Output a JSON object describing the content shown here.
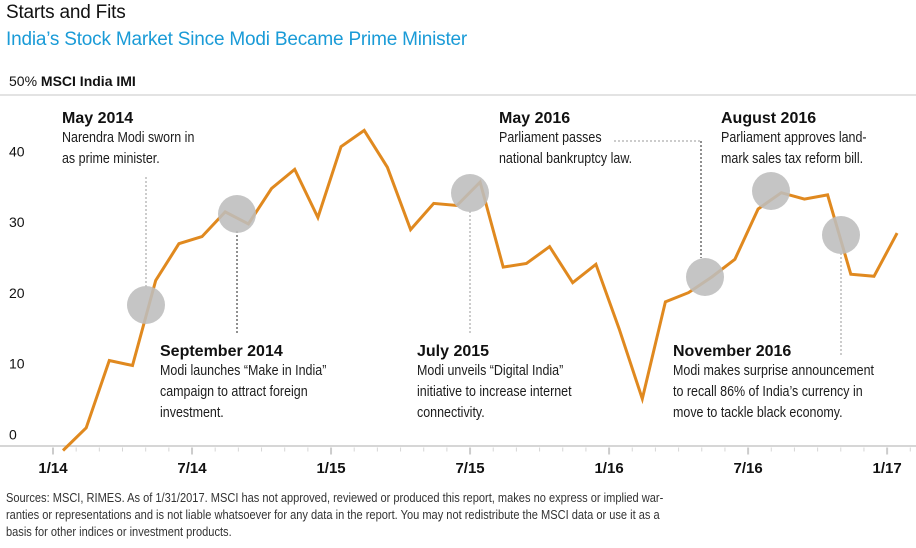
{
  "header": {
    "title": "Starts and Fits",
    "subtitle": "India’s Stock Market Since Modi Became Prime Minister",
    "y_top_unit": "50%",
    "series_label": "MSCI India IMI"
  },
  "colors": {
    "line": "#e0891f",
    "subtitle": "#1a9bd7",
    "marker": "#bdbdbd",
    "axis": "#c8c8c8"
  },
  "annotations": [
    {
      "heading": "May 2014",
      "lines": [
        "Narendra Modi sworn in",
        "as prime minister."
      ]
    },
    {
      "heading": "September 2014",
      "lines": [
        "Modi launches “Make in India”",
        "campaign to attract foreign",
        "investment."
      ]
    },
    {
      "heading": "July 2015",
      "lines": [
        "Modi unveils “Digital India”",
        "initiative to increase internet",
        "connectivity."
      ]
    },
    {
      "heading": "May 2016",
      "lines": [
        "Parliament passes",
        "national bankruptcy law."
      ]
    },
    {
      "heading": "August 2016",
      "lines": [
        "Parliament approves land-",
        "mark sales tax reform bill."
      ]
    },
    {
      "heading": "November 2016",
      "lines": [
        "Modi makes surprise announcement",
        "to recall 86% of India’s currency in",
        "move to tackle black economy."
      ]
    }
  ],
  "footer": {
    "lines": [
      "Sources: MSCI, RIMES. As of 1/31/2017. MSCI has not approved, reviewed or produced this report, makes no express or implied war-",
      "ranties or representations and is not liable whatsoever for any data in the report. You may not redistribute the MSCI data or use it as a",
      "basis for other indices or investment products."
    ]
  },
  "chart_data": {
    "type": "line",
    "title": "India’s Stock Market Since Modi Became Prime Minister",
    "xlabel": "",
    "ylabel": "MSCI India IMI (%)",
    "ylim": [
      0,
      50
    ],
    "yticks": [
      0,
      10,
      20,
      30,
      40,
      50
    ],
    "ytick_labels": [
      "0",
      "10",
      "20",
      "30",
      "40",
      "50%"
    ],
    "xticks": [
      "1/14",
      "7/14",
      "1/15",
      "7/15",
      "1/16",
      "7/16",
      "1/17"
    ],
    "grid": false,
    "series": [
      {
        "name": "MSCI India IMI",
        "x_start": "2014-01",
        "x_step": "month",
        "values": [
          -0.7,
          2.5,
          12.0,
          11.3,
          23.3,
          28.5,
          29.5,
          33.0,
          31.3,
          36.3,
          39.0,
          32.2,
          42.2,
          44.5,
          39.3,
          30.5,
          34.2,
          33.9,
          37.2,
          25.2,
          25.7,
          28.1,
          23.0,
          25.6,
          16.5,
          6.6,
          20.3,
          21.6,
          23.8,
          26.3,
          33.4,
          35.7,
          34.8,
          35.4,
          24.2,
          23.9,
          30.0
        ]
      }
    ],
    "events": [
      {
        "label": "May 2014",
        "month_index": 4,
        "value": 18.5
      },
      {
        "label": "September 2014",
        "month_index": 8,
        "value": 31.5
      },
      {
        "label": "July 2015",
        "month_index": 18,
        "value": 34.5
      },
      {
        "label": "May 2016",
        "month_index": 28,
        "value": 22.5
      },
      {
        "label": "August 2016",
        "month_index": 31,
        "value": 34.5
      },
      {
        "label": "November 2016",
        "month_index": 34,
        "value": 28.5
      }
    ]
  }
}
